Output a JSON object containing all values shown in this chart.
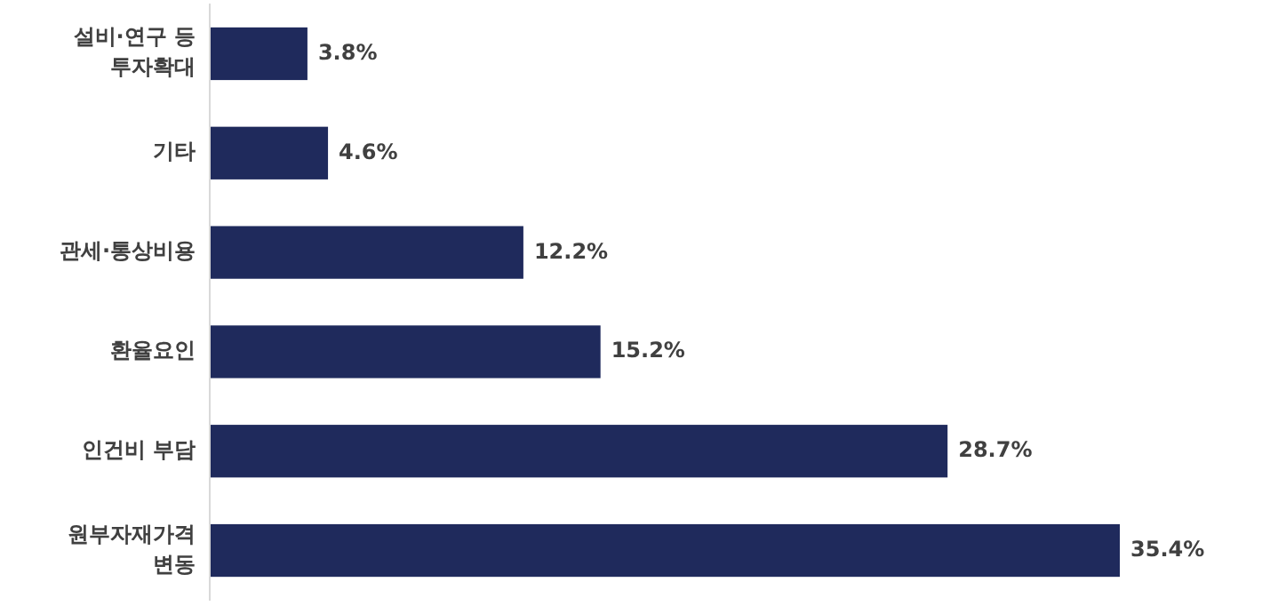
{
  "chart_data": {
    "type": "bar",
    "orientation": "horizontal",
    "categories": [
      "설비·연구 등\n투자확대",
      "기타",
      "관세·통상비용",
      "환율요인",
      "인건비 부담",
      "원부자재가격\n변동"
    ],
    "values": [
      3.8,
      4.6,
      12.2,
      15.2,
      28.7,
      35.4
    ],
    "value_labels": [
      "3.8%",
      "4.6%",
      "12.2%",
      "15.2%",
      "28.7%",
      "35.4%"
    ],
    "color": "#1f2a5c"
  }
}
